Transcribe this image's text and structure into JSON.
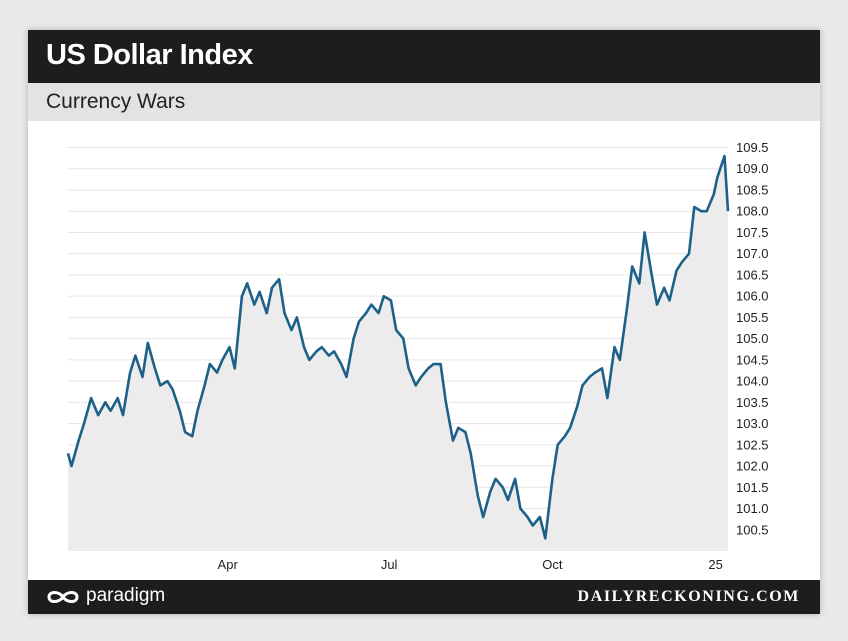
{
  "header": {
    "title": "US Dollar Index",
    "subtitle": "Currency Wars"
  },
  "footer": {
    "brand": "paradigm",
    "site": "DAILYRECKONING.COM"
  },
  "colors": {
    "line": "#1d6088",
    "area": "#ececec",
    "title_bar": "#1d1d1d",
    "subtitle_bar": "#e3e3e3"
  },
  "icons": {
    "brand_logo": "infinity-icon"
  },
  "chart_data": {
    "type": "line",
    "title": "US Dollar Index",
    "subtitle": "Currency Wars",
    "xlabel": "",
    "ylabel": "",
    "grid": true,
    "x_tick_labels": [
      "Apr",
      "Jul",
      "Oct",
      "25"
    ],
    "x_ticks_dates": [
      "2024-04-01",
      "2024-07-01",
      "2024-10-01",
      "2025-01-01"
    ],
    "y_ticks": [
      100.5,
      101.0,
      101.5,
      102.0,
      102.5,
      103.0,
      103.5,
      104.0,
      104.5,
      105.0,
      105.5,
      106.0,
      106.5,
      107.0,
      107.5,
      108.0,
      108.5,
      109.0,
      109.5
    ],
    "y_tick_labels": [
      "100.5",
      "101.0",
      "101.5",
      "102.0",
      "102.5",
      "103.0",
      "103.5",
      "104.0",
      "104.5",
      "105.0",
      "105.5",
      "106.0",
      "106.5",
      "107.0",
      "107.5",
      "108.0",
      "108.5",
      "109.0",
      "109.5"
    ],
    "ylim": [
      100.0,
      109.7
    ],
    "xlim": [
      "2024-01-02",
      "2025-01-08"
    ],
    "series": [
      {
        "x": [
          "2024-01-02",
          "2024-01-04",
          "2024-01-08",
          "2024-01-11",
          "2024-01-15",
          "2024-01-19",
          "2024-01-23",
          "2024-01-26",
          "2024-01-30",
          "2024-02-02",
          "2024-02-06",
          "2024-02-09",
          "2024-02-13",
          "2024-02-16",
          "2024-02-20",
          "2024-02-23",
          "2024-02-27",
          "2024-03-01",
          "2024-03-05",
          "2024-03-08",
          "2024-03-12",
          "2024-03-15",
          "2024-03-19",
          "2024-03-22",
          "2024-03-26",
          "2024-03-29",
          "2024-04-02",
          "2024-04-05",
          "2024-04-09",
          "2024-04-12",
          "2024-04-16",
          "2024-04-19",
          "2024-04-23",
          "2024-04-26",
          "2024-04-30",
          "2024-05-03",
          "2024-05-07",
          "2024-05-10",
          "2024-05-14",
          "2024-05-17",
          "2024-05-21",
          "2024-05-24",
          "2024-05-28",
          "2024-05-31",
          "2024-06-04",
          "2024-06-07",
          "2024-06-11",
          "2024-06-14",
          "2024-06-18",
          "2024-06-21",
          "2024-06-25",
          "2024-06-28",
          "2024-07-02",
          "2024-07-05",
          "2024-07-09",
          "2024-07-12",
          "2024-07-16",
          "2024-07-19",
          "2024-07-23",
          "2024-07-26",
          "2024-07-30",
          "2024-08-02",
          "2024-08-06",
          "2024-08-09",
          "2024-08-13",
          "2024-08-16",
          "2024-08-20",
          "2024-08-23",
          "2024-08-27",
          "2024-08-30",
          "2024-09-03",
          "2024-09-06",
          "2024-09-10",
          "2024-09-13",
          "2024-09-17",
          "2024-09-20",
          "2024-09-24",
          "2024-09-27",
          "2024-10-01",
          "2024-10-04",
          "2024-10-08",
          "2024-10-11",
          "2024-10-15",
          "2024-10-18",
          "2024-10-22",
          "2024-10-25",
          "2024-10-29",
          "2024-11-01",
          "2024-11-05",
          "2024-11-08",
          "2024-11-12",
          "2024-11-15",
          "2024-11-19",
          "2024-11-22",
          "2024-11-26",
          "2024-11-29",
          "2024-12-03",
          "2024-12-06",
          "2024-12-10",
          "2024-12-13",
          "2024-12-17",
          "2024-12-20",
          "2024-12-24",
          "2024-12-27",
          "2024-12-31",
          "2025-01-02",
          "2025-01-06",
          "2025-01-08"
        ],
        "values": [
          102.3,
          102.0,
          102.6,
          103.0,
          103.6,
          103.2,
          103.5,
          103.3,
          103.6,
          103.2,
          104.2,
          104.6,
          104.1,
          104.9,
          104.3,
          103.9,
          104.0,
          103.8,
          103.3,
          102.8,
          102.7,
          103.3,
          103.9,
          104.4,
          104.2,
          104.5,
          104.8,
          104.3,
          106.0,
          106.3,
          105.8,
          106.1,
          105.6,
          106.2,
          106.4,
          105.6,
          105.2,
          105.5,
          104.8,
          104.5,
          104.7,
          104.8,
          104.6,
          104.7,
          104.4,
          104.1,
          105.0,
          105.4,
          105.6,
          105.8,
          105.6,
          106.0,
          105.9,
          105.2,
          105.0,
          104.3,
          103.9,
          104.1,
          104.3,
          104.4,
          104.4,
          103.5,
          102.6,
          102.9,
          102.8,
          102.3,
          101.3,
          100.8,
          101.4,
          101.7,
          101.5,
          101.2,
          101.7,
          101.0,
          100.8,
          100.6,
          100.8,
          100.3,
          101.7,
          102.5,
          102.7,
          102.9,
          103.4,
          103.9,
          104.1,
          104.2,
          104.3,
          103.6,
          104.8,
          104.5,
          105.7,
          106.7,
          106.3,
          107.5,
          106.5,
          105.8,
          106.2,
          105.9,
          106.6,
          106.8,
          107.0,
          108.1,
          108.0,
          108.0,
          108.4,
          108.8,
          109.3,
          108.0
        ]
      }
    ]
  }
}
